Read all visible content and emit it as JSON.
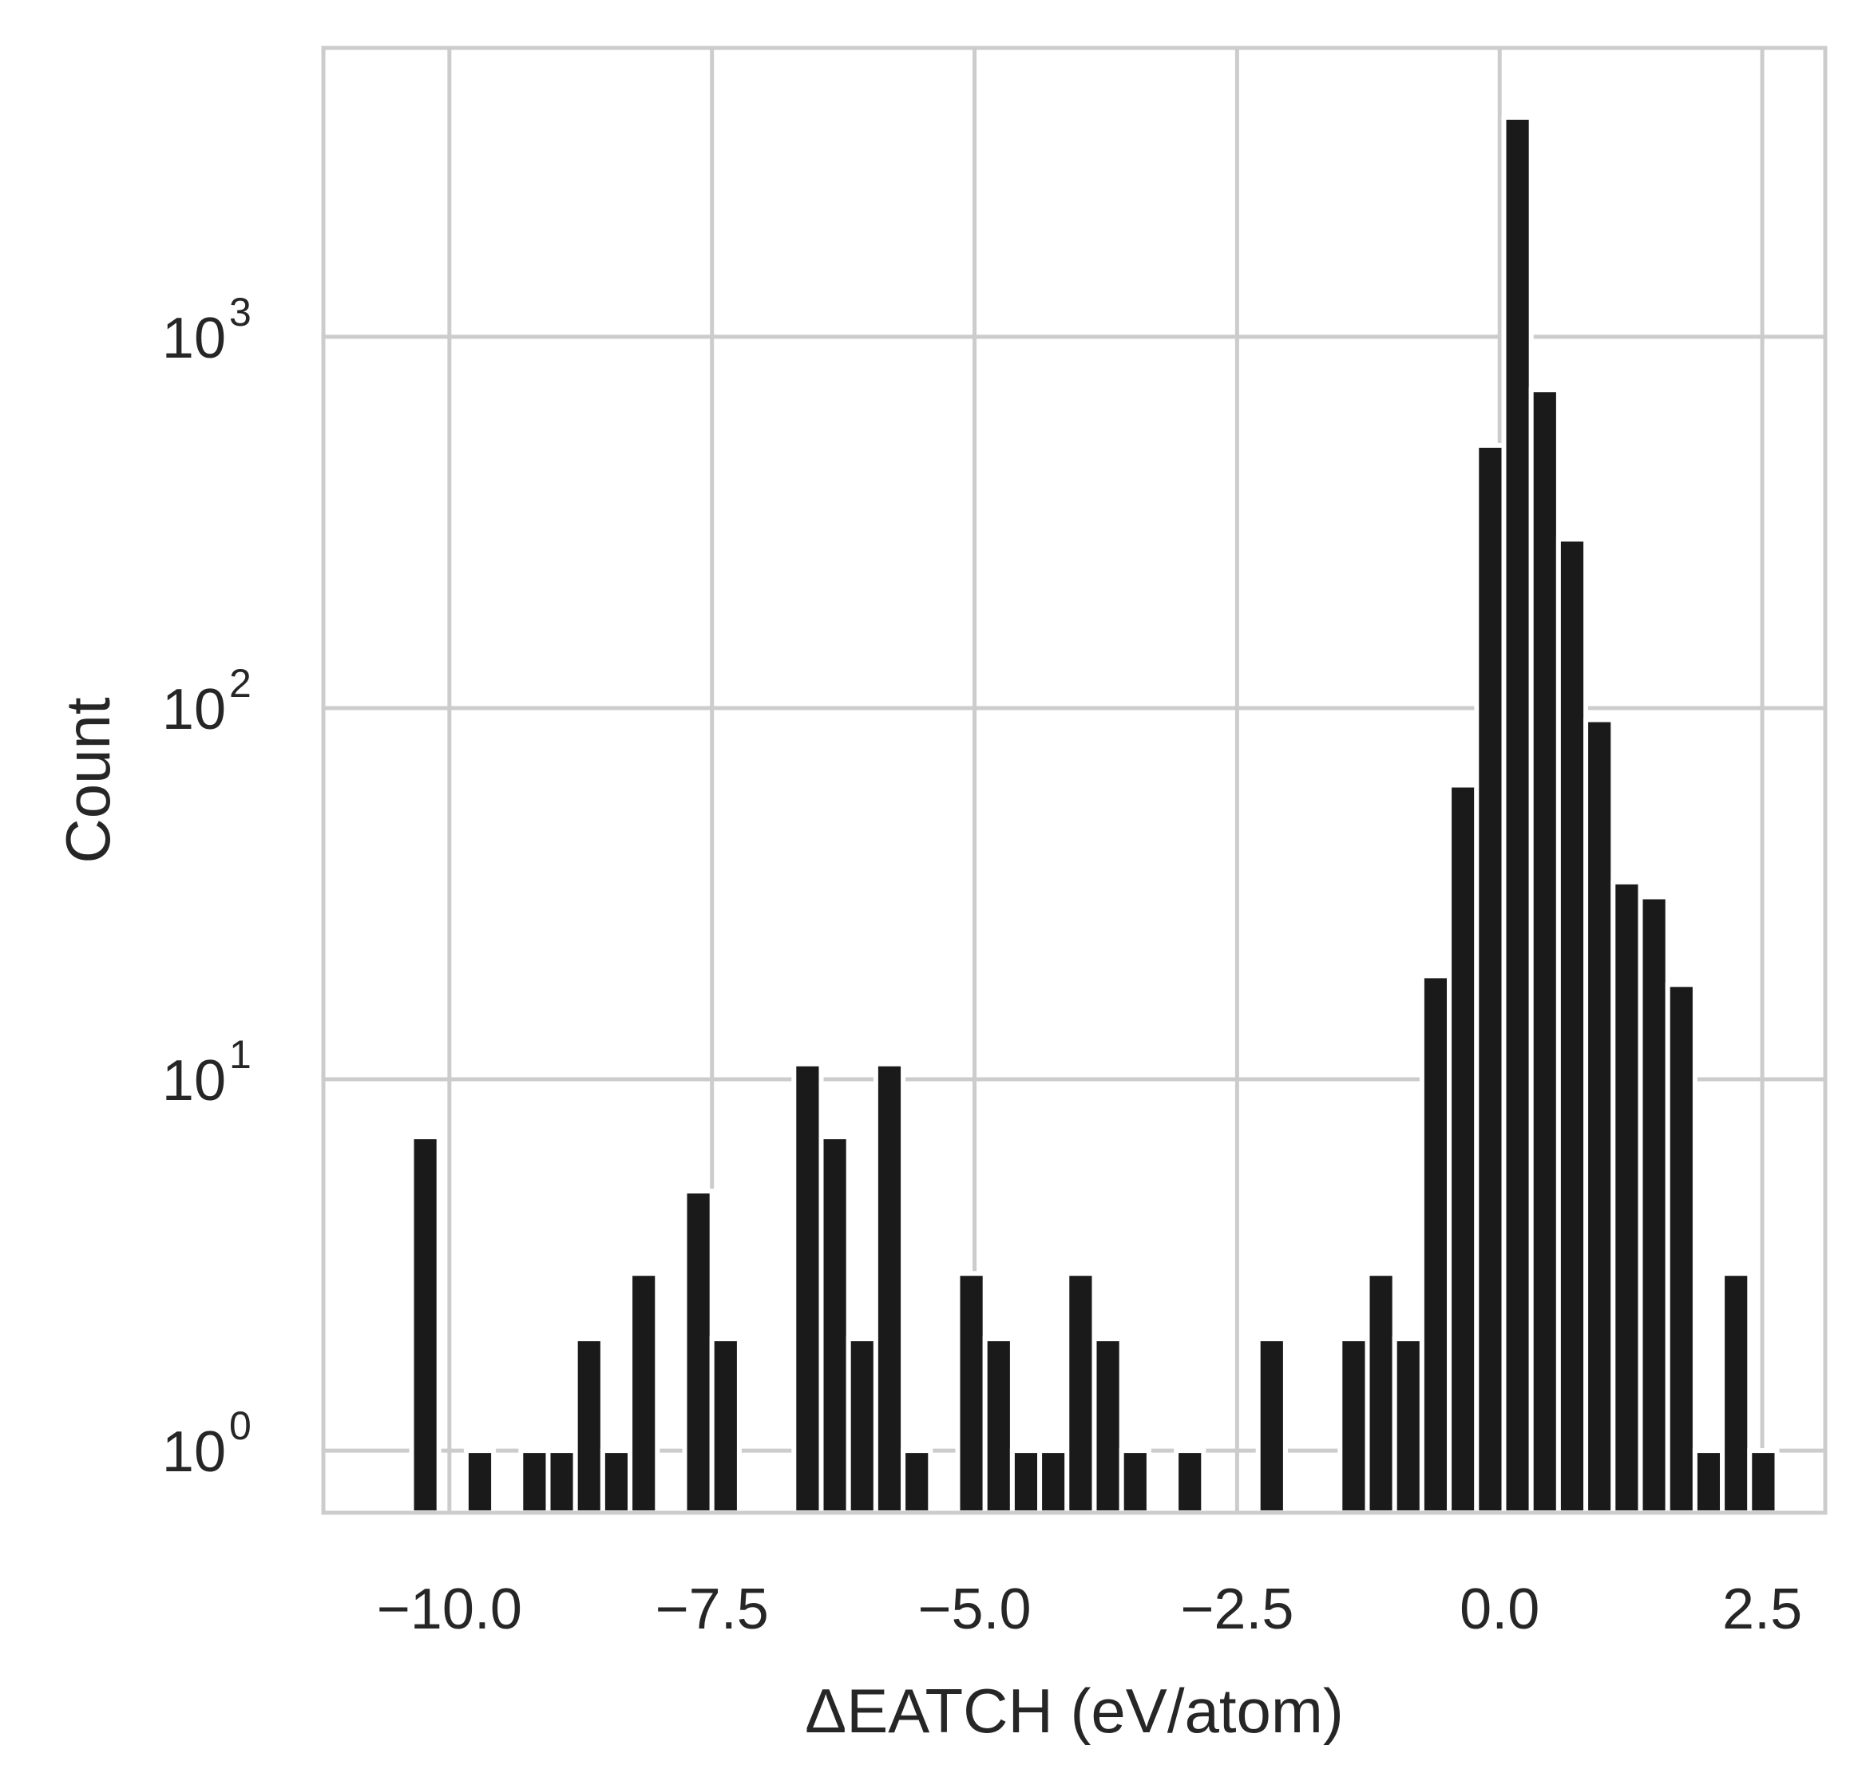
{
  "chart_data": {
    "type": "bar",
    "xlabel": "ΔEATCH (eV/atom)",
    "ylabel": "Count",
    "yscale": "log",
    "xlim": [
      -11.2,
      3.1
    ],
    "ylim": [
      0.68,
      6000
    ],
    "grid": true,
    "x_ticks": [
      -10.0,
      -7.5,
      -5.0,
      -2.5,
      0.0,
      2.5
    ],
    "x_tick_labels": [
      "−10.0",
      "−7.5",
      "−5.0",
      "−2.5",
      "0.0",
      "2.5"
    ],
    "y_ticks": [
      {
        "value": 1,
        "base": "10",
        "exp": "0"
      },
      {
        "value": 10,
        "base": "10",
        "exp": "1"
      },
      {
        "value": 100,
        "base": "10",
        "exp": "2"
      },
      {
        "value": 1000,
        "base": "10",
        "exp": "3"
      }
    ],
    "bar_color": "#1a1a1a",
    "bin_width": 0.26,
    "bars": [
      {
        "x": -10.23,
        "count": 7
      },
      {
        "x": -9.71,
        "count": 1
      },
      {
        "x": -9.19,
        "count": 1
      },
      {
        "x": -8.93,
        "count": 1
      },
      {
        "x": -8.67,
        "count": 2
      },
      {
        "x": -8.41,
        "count": 1
      },
      {
        "x": -8.15,
        "count": 3
      },
      {
        "x": -7.63,
        "count": 5
      },
      {
        "x": -7.37,
        "count": 2
      },
      {
        "x": -6.59,
        "count": 11
      },
      {
        "x": -6.33,
        "count": 7
      },
      {
        "x": -6.07,
        "count": 2
      },
      {
        "x": -5.81,
        "count": 11
      },
      {
        "x": -5.55,
        "count": 1
      },
      {
        "x": -5.03,
        "count": 3
      },
      {
        "x": -4.77,
        "count": 2
      },
      {
        "x": -4.51,
        "count": 1
      },
      {
        "x": -4.25,
        "count": 1
      },
      {
        "x": -3.99,
        "count": 3
      },
      {
        "x": -3.73,
        "count": 2
      },
      {
        "x": -3.47,
        "count": 1
      },
      {
        "x": -2.95,
        "count": 1
      },
      {
        "x": -2.17,
        "count": 2
      },
      {
        "x": -1.39,
        "count": 2
      },
      {
        "x": -1.13,
        "count": 3
      },
      {
        "x": -0.87,
        "count": 2
      },
      {
        "x": -0.61,
        "count": 19
      },
      {
        "x": -0.35,
        "count": 62
      },
      {
        "x": -0.09,
        "count": 510
      },
      {
        "x": 0.17,
        "count": 3900
      },
      {
        "x": 0.43,
        "count": 720
      },
      {
        "x": 0.69,
        "count": 285
      },
      {
        "x": 0.95,
        "count": 93
      },
      {
        "x": 1.21,
        "count": 34
      },
      {
        "x": 1.47,
        "count": 31
      },
      {
        "x": 1.73,
        "count": 18
      },
      {
        "x": 1.99,
        "count": 1
      },
      {
        "x": 2.25,
        "count": 3
      },
      {
        "x": 2.51,
        "count": 1
      }
    ]
  }
}
